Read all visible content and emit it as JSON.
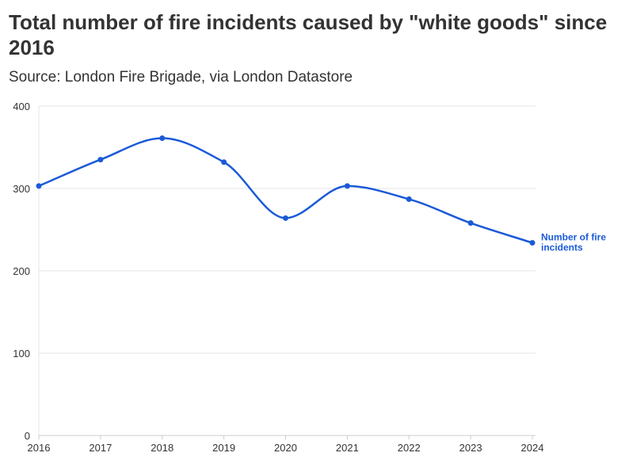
{
  "chart_data": {
    "type": "line",
    "title": "Total number of fire incidents caused by \"white goods\" since 2016",
    "subtitle": "Source: London Fire Brigade, via London Datastore",
    "x": [
      "2016",
      "2017",
      "2018",
      "2019",
      "2020",
      "2021",
      "2022",
      "2023",
      "2024"
    ],
    "series": [
      {
        "name": "Number of fire incidents",
        "label_lines": [
          "Number of fire",
          "incidents"
        ],
        "values": [
          303,
          335,
          361,
          332,
          264,
          303,
          287,
          258,
          234
        ]
      }
    ],
    "y_ticks": [
      "0",
      "100",
      "200",
      "300",
      "400"
    ],
    "ylim": [
      0,
      400
    ],
    "grid": true,
    "series_color": "#1a5ad7",
    "grid_color": "#e6e6e6"
  }
}
